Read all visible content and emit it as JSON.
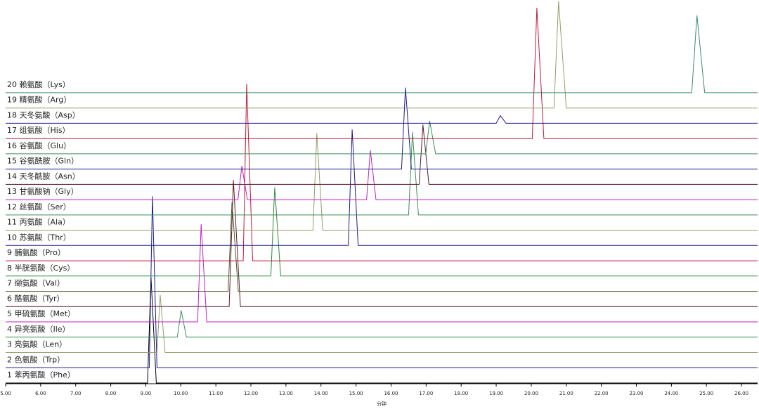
{
  "chart_data": {
    "type": "line",
    "xlabel": "分钟",
    "xlim": [
      5,
      26.46
    ],
    "xticks": [
      {
        "value": 5,
        "label": "5.00"
      },
      {
        "value": 6,
        "label": "6.00"
      },
      {
        "value": 7,
        "label": "7.00"
      },
      {
        "value": 8,
        "label": "8.00"
      },
      {
        "value": 9,
        "label": "9.00"
      },
      {
        "value": 10,
        "label": "10.00"
      },
      {
        "value": 11,
        "label": "11.00"
      },
      {
        "value": 12,
        "label": "12.00"
      },
      {
        "value": 13,
        "label": "13.00"
      },
      {
        "value": 14,
        "label": "14.00"
      },
      {
        "value": 15,
        "label": "15.00"
      },
      {
        "value": 16,
        "label": "16.00"
      },
      {
        "value": 17,
        "label": "17.00"
      },
      {
        "value": 18,
        "label": "18.00"
      },
      {
        "value": 19,
        "label": "19.00"
      },
      {
        "value": 20,
        "label": "20.00"
      },
      {
        "value": 21,
        "label": "21.00"
      },
      {
        "value": 22,
        "label": "22.00"
      },
      {
        "value": 23,
        "label": "23.00"
      },
      {
        "value": 24,
        "label": "24.00"
      },
      {
        "value": 25,
        "label": "25.00"
      },
      {
        "value": 26,
        "label": "26.00"
      }
    ],
    "series": [
      {
        "name": "1 苯丙氨酸（Phe）",
        "color": "#000000",
        "x": [
          5,
          9.05,
          9.15,
          9.3,
          26.46
        ],
        "values": [
          0,
          0,
          150,
          0,
          0
        ]
      },
      {
        "name": "2 色氨酸（Trp）",
        "color": "#1a1a8c",
        "x": [
          5,
          9.1,
          9.19,
          9.32,
          26.46
        ],
        "values": [
          0,
          0,
          244,
          0,
          0
        ]
      },
      {
        "name": "3 亮氨酸（Len）",
        "color": "#9a9a6a",
        "x": [
          5,
          9.32,
          9.41,
          9.55,
          26.46
        ],
        "values": [
          0,
          0,
          82,
          0,
          0
        ]
      },
      {
        "name": "4 异亮氨酸（Ile）",
        "color": "#3c8c5a",
        "x": [
          5,
          9.9,
          10.01,
          10.16,
          26.46
        ],
        "values": [
          0,
          0,
          38,
          0,
          0
        ]
      },
      {
        "name": "5 甲硫氨酸（Met）",
        "color": "#c020c0",
        "x": [
          5,
          10.48,
          10.58,
          10.74,
          26.46
        ],
        "values": [
          0,
          0,
          139,
          0,
          0
        ]
      },
      {
        "name": "6 酪氨酸（Tyr）",
        "color": "#5a1a2a",
        "x": [
          5,
          11.38,
          11.5,
          11.7,
          26.46
        ],
        "values": [
          0,
          0,
          180,
          0,
          0
        ]
      },
      {
        "name": "7 缬氨酸（Val）",
        "color": "#4a5a2a",
        "x": [
          5,
          11.35,
          11.46,
          11.64,
          26.46
        ],
        "values": [
          0,
          0,
          127,
          0,
          0
        ]
      },
      {
        "name": "8 半胱氨酸（Cys）",
        "color": "#2a8a3a",
        "x": [
          5,
          12.57,
          12.68,
          12.85,
          26.46
        ],
        "values": [
          0,
          0,
          126,
          0,
          0
        ]
      },
      {
        "name": "9 脯氨酸（Pro）",
        "color": "#c01a3a",
        "x": [
          5,
          11.78,
          11.88,
          12.05,
          26.46
        ],
        "values": [
          0,
          0,
          252,
          0,
          0
        ]
      },
      {
        "name": "10 苏氨酸（Thr）",
        "color": "#1a1a8c",
        "x": [
          5,
          14.78,
          14.89,
          15.06,
          26.46
        ],
        "values": [
          0,
          0,
          165,
          0,
          0
        ]
      },
      {
        "name": "11 丙氨酸（Ala）",
        "color": "#9a9a6a",
        "x": [
          5,
          13.77,
          13.88,
          14.05,
          26.46
        ],
        "values": [
          0,
          0,
          138,
          0,
          0
        ]
      },
      {
        "name": "12 丝氨酸（Ser）",
        "color": "#3c8c5a",
        "x": [
          5,
          16.5,
          16.61,
          16.78,
          26.46
        ],
        "values": [
          0,
          0,
          118,
          0,
          0
        ]
      },
      {
        "name": "13 甘氨酸钠（Gly）",
        "color": "#c020c0",
        "x": [
          5,
          11.63,
          11.74,
          11.9,
          15.3,
          15.41,
          15.57,
          26.46
        ],
        "values": [
          0,
          0,
          48,
          0,
          0,
          70,
          0,
          0
        ]
      },
      {
        "name": "14 天冬酰胺（Asn）",
        "color": "#5a1a2a",
        "x": [
          5,
          16.8,
          16.91,
          17.08,
          26.46
        ],
        "values": [
          0,
          0,
          85,
          0,
          0
        ]
      },
      {
        "name": "15 谷氨酰胺（Gln）",
        "color": "#1a1a8c",
        "x": [
          5,
          16.3,
          16.41,
          16.58,
          26.46
        ],
        "values": [
          0,
          0,
          116,
          0,
          0
        ]
      },
      {
        "name": "16 谷氨酸（Glu）",
        "color": "#3c8c5a",
        "x": [
          5,
          16.99,
          17.1,
          17.27,
          26.46
        ],
        "values": [
          0,
          0,
          47,
          0,
          0
        ]
      },
      {
        "name": "17 组氨酸（His）",
        "color": "#c01a3a",
        "x": [
          5,
          20.03,
          20.16,
          20.36,
          26.46
        ],
        "values": [
          0,
          0,
          186,
          0,
          0
        ]
      },
      {
        "name": "18 天冬氨酸（Asp）",
        "color": "#1a1a8c",
        "x": [
          5,
          19.0,
          19.12,
          19.28,
          26.46
        ],
        "values": [
          0,
          0,
          11,
          0,
          0
        ]
      },
      {
        "name": "19 精氨酸（Arg）",
        "color": "#9a9a6a",
        "x": [
          5,
          20.65,
          20.78,
          21.0,
          26.46
        ],
        "values": [
          0,
          0,
          152,
          0,
          0
        ]
      },
      {
        "name": "20 赖氨酸（Lys）",
        "color": "#3c8a6a",
        "x": [
          5,
          24.58,
          24.73,
          24.95,
          26.46
        ],
        "values": [
          0,
          0,
          110,
          0,
          0
        ]
      }
    ]
  }
}
